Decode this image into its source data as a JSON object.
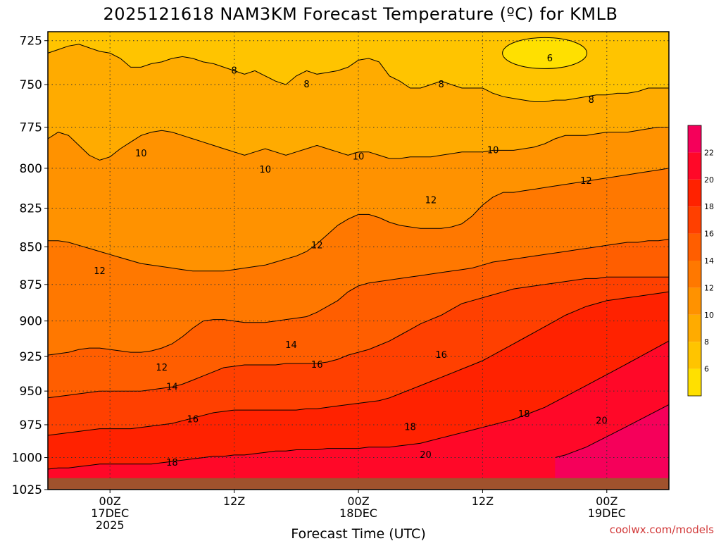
{
  "chart_data": {
    "type": "heatmap",
    "title": "2025121618 NAM3KM Forecast Temperature (ºC) for KMLB",
    "xlabel": "Forecast Time (UTC)",
    "ylabel": "",
    "credit": "coolwx.com/models",
    "units": "ºC",
    "x_range_hours": [
      -6,
      54
    ],
    "y_range_hpa": [
      720,
      1025
    ],
    "y_ticks": [
      725,
      750,
      775,
      800,
      825,
      850,
      875,
      900,
      925,
      950,
      975,
      1000,
      1025
    ],
    "x_ticks": [
      {
        "hour": 0,
        "lines": [
          "00Z",
          "17DEC",
          "2025"
        ]
      },
      {
        "hour": 12,
        "lines": [
          "12Z"
        ]
      },
      {
        "hour": 24,
        "lines": [
          "00Z",
          "18DEC"
        ]
      },
      {
        "hour": 36,
        "lines": [
          "12Z"
        ]
      },
      {
        "hour": 48,
        "lines": [
          "00Z",
          "19DEC"
        ]
      }
    ],
    "colorbar": {
      "levels": [
        4,
        6,
        8,
        10,
        12,
        14,
        16,
        18,
        20,
        22,
        24
      ],
      "tick_labels": [
        "6",
        "8",
        "10",
        "12",
        "14",
        "16",
        "18",
        "20",
        "22"
      ],
      "colors": [
        "#ffe000",
        "#ffc400",
        "#ffab00",
        "#ff9200",
        "#ff7800",
        "#ff5e00",
        "#ff4000",
        "#ff2200",
        "#ff0828",
        "#f5005a"
      ]
    },
    "series": [
      {
        "name": "6ºC isotherm",
        "level": 6,
        "pressure_hpa": [
          null,
          null,
          null,
          null,
          null,
          null,
          null,
          null,
          null,
          null,
          null,
          null,
          null,
          null,
          null,
          null,
          null,
          null,
          null,
          null,
          null,
          null,
          null,
          null,
          null,
          null,
          null,
          null,
          null,
          null,
          null,
          null,
          null,
          null,
          null,
          null,
          null,
          null,
          null,
          null,
          null,
          null,
          null,
          null,
          null,
          null,
          null,
          null,
          null,
          null,
          null,
          null,
          null,
          null,
          null,
          null,
          null,
          null,
          null,
          null,
          null
        ]
      },
      {
        "name": "8ºC isotherm",
        "level": 8,
        "pressure_hpa": [
          732,
          730,
          728,
          727,
          729,
          731,
          732,
          735,
          740,
          740,
          738,
          737,
          735,
          734,
          735,
          737,
          738,
          740,
          742,
          744,
          742,
          745,
          748,
          750,
          745,
          742,
          744,
          743,
          742,
          740,
          736,
          735,
          737,
          745,
          748,
          752,
          752,
          750,
          748,
          750,
          752,
          752,
          752,
          755,
          757,
          758,
          759,
          760,
          760,
          759,
          759,
          758,
          757,
          756,
          756,
          755,
          755,
          754,
          752,
          752,
          752
        ]
      },
      {
        "name": "10ºC isotherm",
        "level": 10,
        "pressure_hpa": [
          782,
          778,
          780,
          786,
          792,
          795,
          793,
          788,
          784,
          780,
          778,
          777,
          778,
          780,
          782,
          784,
          786,
          788,
          790,
          792,
          790,
          788,
          790,
          792,
          790,
          788,
          786,
          788,
          790,
          792,
          790,
          790,
          792,
          794,
          794,
          793,
          793,
          793,
          792,
          791,
          790,
          790,
          790,
          789,
          789,
          789,
          788,
          787,
          785,
          782,
          780,
          780,
          780,
          779,
          778,
          778,
          778,
          777,
          776,
          775,
          775
        ]
      },
      {
        "name": "12ºC isotherm",
        "level": 12,
        "pressure_hpa": [
          846,
          846,
          847,
          849,
          851,
          853,
          855,
          857,
          859,
          861,
          862,
          863,
          864,
          865,
          866,
          866,
          866,
          866,
          865,
          864,
          863,
          862,
          860,
          858,
          856,
          853,
          848,
          842,
          836,
          832,
          829,
          829,
          831,
          834,
          836,
          837,
          838,
          838,
          838,
          837,
          835,
          830,
          823,
          818,
          815,
          815,
          814,
          813,
          812,
          811,
          810,
          809,
          808,
          807,
          806,
          805,
          804,
          803,
          802,
          801,
          800
        ]
      },
      {
        "name": "14ºC isotherm",
        "level": 14,
        "pressure_hpa": [
          924,
          923,
          922,
          920,
          919,
          919,
          920,
          921,
          922,
          922,
          921,
          919,
          916,
          911,
          905,
          900,
          899,
          899,
          900,
          901,
          901,
          901,
          900,
          899,
          898,
          897,
          894,
          890,
          886,
          880,
          876,
          874,
          873,
          872,
          871,
          870,
          869,
          868,
          867,
          866,
          865,
          864,
          862,
          860,
          859,
          858,
          857,
          856,
          855,
          854,
          853,
          852,
          851,
          850,
          849,
          848,
          847,
          847,
          846,
          846,
          845
        ]
      },
      {
        "name": "16ºC isotherm",
        "level": 16,
        "pressure_hpa": [
          955,
          954,
          953,
          952,
          951,
          950,
          950,
          950,
          950,
          950,
          949,
          948,
          947,
          945,
          942,
          939,
          936,
          933,
          932,
          931,
          931,
          931,
          931,
          930,
          930,
          930,
          930,
          929,
          927,
          924,
          922,
          920,
          917,
          914,
          910,
          906,
          902,
          899,
          896,
          892,
          888,
          886,
          884,
          882,
          880,
          878,
          877,
          876,
          875,
          874,
          873,
          872,
          871,
          871,
          870,
          870,
          870,
          870,
          870,
          870,
          870
        ]
      },
      {
        "name": "18ºC isotherm",
        "level": 18,
        "pressure_hpa": [
          983,
          982,
          981,
          980,
          979,
          978,
          978,
          978,
          978,
          977,
          976,
          975,
          974,
          972,
          970,
          968,
          966,
          965,
          964,
          964,
          964,
          964,
          964,
          964,
          964,
          963,
          963,
          962,
          961,
          960,
          959,
          958,
          957,
          955,
          952,
          949,
          946,
          943,
          940,
          937,
          934,
          931,
          928,
          924,
          920,
          916,
          912,
          908,
          904,
          900,
          896,
          893,
          890,
          888,
          886,
          885,
          884,
          883,
          882,
          881,
          880
        ]
      },
      {
        "name": "20ºC isotherm",
        "level": 20,
        "pressure_hpa": [
          1009,
          1008,
          1008,
          1007,
          1006,
          1005,
          1005,
          1005,
          1005,
          1005,
          1005,
          1004,
          1003,
          1002,
          1001,
          1000,
          999,
          999,
          998,
          998,
          997,
          996,
          995,
          995,
          994,
          994,
          994,
          993,
          993,
          993,
          993,
          992,
          992,
          992,
          991,
          990,
          989,
          987,
          985,
          983,
          981,
          979,
          977,
          975,
          973,
          971,
          968,
          965,
          962,
          958,
          954,
          950,
          946,
          942,
          938,
          934,
          930,
          926,
          922,
          918,
          914
        ]
      },
      {
        "name": "22ºC isotherm",
        "level": 22,
        "pressure_hpa": [
          null,
          null,
          null,
          null,
          null,
          null,
          null,
          null,
          null,
          null,
          null,
          null,
          null,
          null,
          null,
          null,
          null,
          null,
          null,
          null,
          null,
          null,
          null,
          null,
          null,
          null,
          null,
          null,
          null,
          null,
          null,
          null,
          null,
          null,
          null,
          null,
          null,
          null,
          null,
          null,
          null,
          null,
          null,
          null,
          null,
          null,
          null,
          null,
          null,
          1000,
          998,
          995,
          992,
          988,
          984,
          980,
          976,
          972,
          968,
          964,
          960
        ]
      }
    ],
    "contour_labels": [
      {
        "text": "6",
        "hour": 42.5,
        "pressure": 735
      },
      {
        "text": "8",
        "hour": 12,
        "pressure": 742
      },
      {
        "text": "8",
        "hour": 19,
        "pressure": 750
      },
      {
        "text": "8",
        "hour": 32,
        "pressure": 750
      },
      {
        "text": "8",
        "hour": 46.5,
        "pressure": 759
      },
      {
        "text": "10",
        "hour": 3,
        "pressure": 791
      },
      {
        "text": "10",
        "hour": 15,
        "pressure": 801
      },
      {
        "text": "10",
        "hour": 24,
        "pressure": 793
      },
      {
        "text": "10",
        "hour": 37,
        "pressure": 789
      },
      {
        "text": "12",
        "hour": -1,
        "pressure": 866
      },
      {
        "text": "12",
        "hour": 20,
        "pressure": 849
      },
      {
        "text": "12",
        "hour": 31,
        "pressure": 820
      },
      {
        "text": "12",
        "hour": 46,
        "pressure": 808
      },
      {
        "text": "14",
        "hour": 6,
        "pressure": 947
      },
      {
        "text": "14",
        "hour": 17.5,
        "pressure": 917
      },
      {
        "text": "16",
        "hour": 8,
        "pressure": 971
      },
      {
        "text": "16",
        "hour": 20,
        "pressure": 931
      },
      {
        "text": "16",
        "hour": 32,
        "pressure": 924
      },
      {
        "text": "18",
        "hour": 6,
        "pressure": 1004
      },
      {
        "text": "18",
        "hour": 29,
        "pressure": 977
      },
      {
        "text": "18",
        "hour": 40,
        "pressure": 967
      },
      {
        "text": "20",
        "hour": 30.5,
        "pressure": 998
      },
      {
        "text": "20",
        "hour": 47.5,
        "pressure": 972
      },
      {
        "text": "12",
        "hour": 5,
        "pressure": 933
      }
    ],
    "ground_color": "#a0522d",
    "surface_pressure_hpa": 1016
  }
}
